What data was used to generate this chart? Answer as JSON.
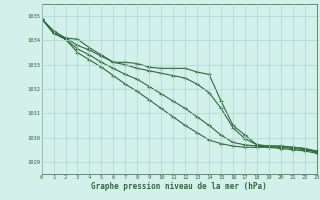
{
  "title": "Graphe pression niveau de la mer (hPa)",
  "background_color": "#d4f0eb",
  "grid_color": "#aad8d3",
  "line_color": "#2d6b3a",
  "xlim": [
    0,
    23
  ],
  "ylim": [
    1028.5,
    1035.5
  ],
  "yticks": [
    1029,
    1030,
    1031,
    1032,
    1033,
    1034,
    1035
  ],
  "xticks": [
    0,
    1,
    2,
    3,
    4,
    5,
    6,
    7,
    8,
    9,
    10,
    11,
    12,
    13,
    14,
    15,
    16,
    17,
    18,
    19,
    20,
    21,
    22,
    23
  ],
  "series": [
    [
      1034.9,
      1034.4,
      1034.1,
      1034.05,
      1033.7,
      1033.4,
      1033.1,
      1033.1,
      1033.05,
      1032.9,
      1032.85,
      1032.85,
      1032.85,
      1032.7,
      1032.6,
      1031.5,
      1030.5,
      1030.1,
      1029.7,
      1029.65,
      1029.65,
      1029.6,
      1029.55,
      1029.45
    ],
    [
      1034.9,
      1034.3,
      1034.1,
      1033.8,
      1033.6,
      1033.35,
      1033.1,
      1033.0,
      1032.85,
      1032.75,
      1032.65,
      1032.55,
      1032.45,
      1032.2,
      1031.85,
      1031.2,
      1030.4,
      1029.95,
      1029.7,
      1029.65,
      1029.65,
      1029.6,
      1029.55,
      1029.4
    ],
    [
      1034.9,
      1034.3,
      1034.05,
      1033.65,
      1033.4,
      1033.1,
      1032.85,
      1032.6,
      1032.4,
      1032.1,
      1031.8,
      1031.5,
      1031.2,
      1030.85,
      1030.5,
      1030.1,
      1029.8,
      1029.7,
      1029.65,
      1029.6,
      1029.6,
      1029.55,
      1029.5,
      1029.4
    ],
    [
      1034.9,
      1034.3,
      1034.05,
      1033.5,
      1033.2,
      1032.9,
      1032.55,
      1032.2,
      1031.9,
      1031.55,
      1031.2,
      1030.85,
      1030.5,
      1030.2,
      1029.9,
      1029.75,
      1029.65,
      1029.6,
      1029.6,
      1029.6,
      1029.55,
      1029.5,
      1029.45,
      1029.35
    ]
  ]
}
